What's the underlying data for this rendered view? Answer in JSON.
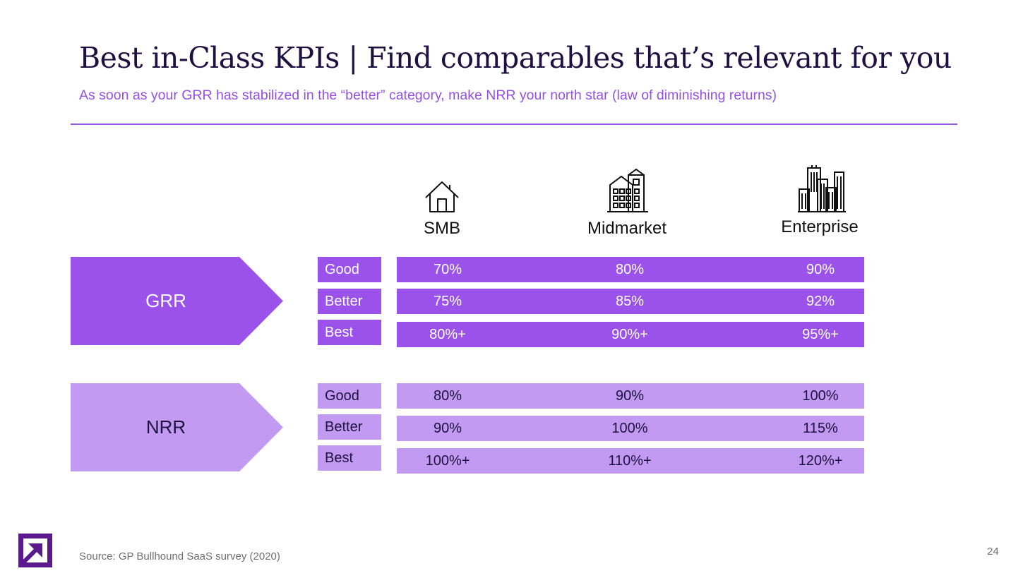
{
  "title": "Best in-Class KPIs | Find comparables that’s relevant for you",
  "subtitle": "As soon as your GRR has stabilized in the “better” category, make NRR your north star (law of diminishing returns)",
  "segments": [
    {
      "label": "SMB",
      "icon": "house-icon"
    },
    {
      "label": "Midmarket",
      "icon": "building-icon"
    },
    {
      "label": "Enterprise",
      "icon": "skyscraper-icon"
    }
  ],
  "grr": {
    "label": "GRR",
    "color": "#9a52ea",
    "rows": [
      {
        "tier": "Good",
        "values": [
          "70%",
          "80%",
          "90%"
        ]
      },
      {
        "tier": "Better",
        "values": [
          "75%",
          "85%",
          "92%"
        ]
      },
      {
        "tier": "Best",
        "values": [
          "80%+",
          "90%+",
          "95%+"
        ]
      }
    ]
  },
  "nrr": {
    "label": "NRR",
    "color": "#c39af2",
    "rows": [
      {
        "tier": "Good",
        "values": [
          "80%",
          "90%",
          "100%"
        ]
      },
      {
        "tier": "Better",
        "values": [
          "90%",
          "100%",
          "115%"
        ]
      },
      {
        "tier": "Best",
        "values": [
          "100%+",
          "110%+",
          "120%+"
        ]
      }
    ]
  },
  "source": "Source: GP Bullhound SaaS survey (2020)",
  "page_number": "24",
  "logo": "arrow-logo-icon"
}
